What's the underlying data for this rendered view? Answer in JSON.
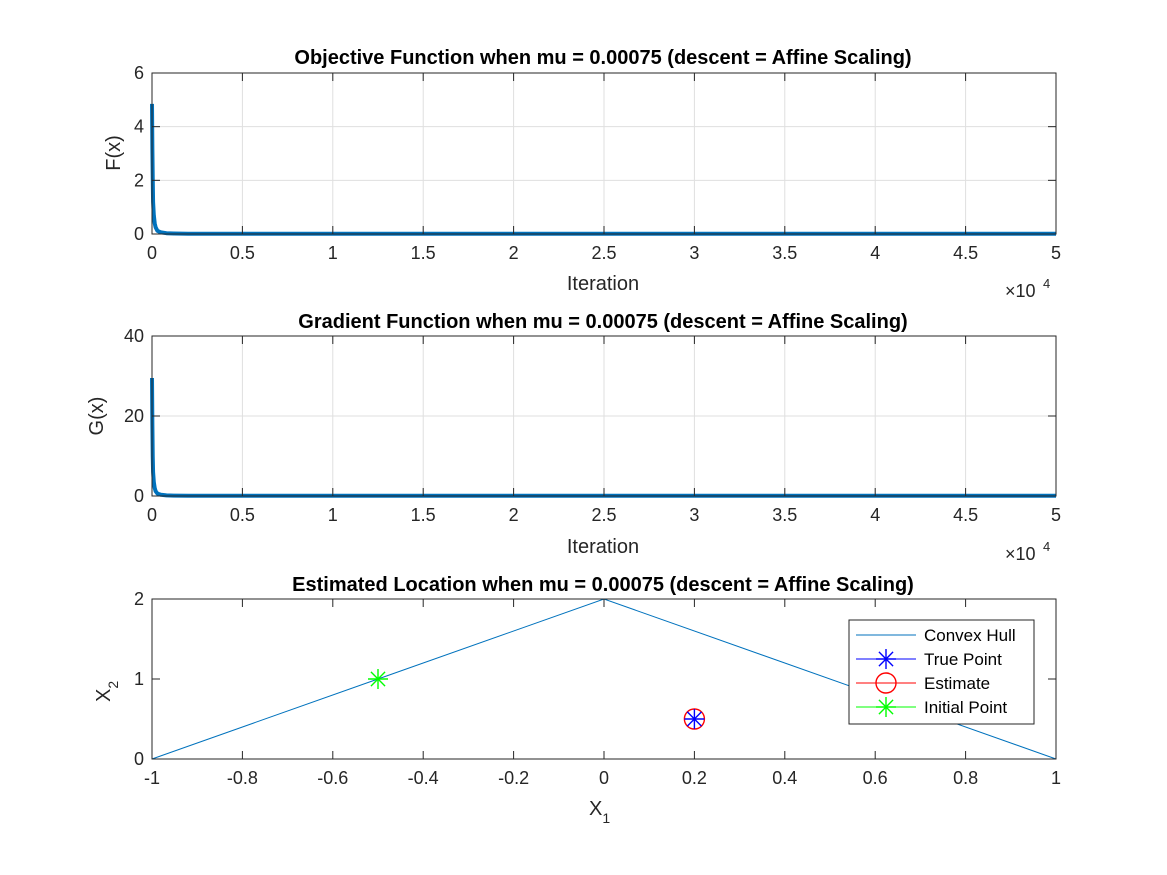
{
  "chart_data": [
    {
      "type": "line",
      "title": "Objective Function when mu = 0.00075 (descent = Affine Scaling)",
      "xlabel": "Iteration",
      "ylabel": "F(x)",
      "x_exponent_base": "×10",
      "x_exponent_power": "4",
      "xlim": [
        0,
        5
      ],
      "ylim": [
        0,
        6
      ],
      "xticks": [
        "0",
        "0.5",
        "1",
        "1.5",
        "2",
        "2.5",
        "3",
        "3.5",
        "4",
        "4.5",
        "5"
      ],
      "yticks": [
        "0",
        "2",
        "4",
        "6"
      ],
      "grid": true,
      "color": "#0072BD",
      "series": [
        {
          "x": [
            0,
            0.002,
            0.004,
            0.006,
            0.01,
            0.015,
            0.02,
            0.03,
            0.05,
            0.08,
            0.12,
            0.2,
            0.5,
            1,
            2,
            3,
            4,
            5
          ],
          "y": [
            4.85,
            3.2,
            2.1,
            1.2,
            0.7,
            0.4,
            0.25,
            0.12,
            0.06,
            0.03,
            0.02,
            0.01,
            0.01,
            0.01,
            0.01,
            0.01,
            0.01,
            0.01
          ]
        }
      ]
    },
    {
      "type": "line",
      "title": "Gradient Function when mu = 0.00075 (descent = Affine Scaling)",
      "xlabel": "Iteration",
      "ylabel": "G(x)",
      "x_exponent_base": "×10",
      "x_exponent_power": "4",
      "xlim": [
        0,
        5
      ],
      "ylim": [
        0,
        40
      ],
      "xticks": [
        "0",
        "0.5",
        "1",
        "1.5",
        "2",
        "2.5",
        "3",
        "3.5",
        "4",
        "4.5",
        "5"
      ],
      "yticks": [
        "0",
        "20",
        "40"
      ],
      "grid": true,
      "color": "#0072BD",
      "series": [
        {
          "x": [
            0,
            0.002,
            0.004,
            0.006,
            0.01,
            0.015,
            0.02,
            0.03,
            0.05,
            0.08,
            0.12,
            0.2,
            0.5,
            1,
            2,
            3,
            4,
            5
          ],
          "y": [
            29.5,
            18,
            10,
            6,
            3.5,
            2,
            1.2,
            0.6,
            0.3,
            0.15,
            0.1,
            0.05,
            0.05,
            0.05,
            0.05,
            0.05,
            0.05,
            0.05
          ]
        }
      ]
    },
    {
      "type": "scatter",
      "title": "Estimated Location when mu = 0.00075 (descent = Affine Scaling)",
      "xlabel_main": "X",
      "xlabel_sub": "1",
      "ylabel_main": "X",
      "ylabel_sub": "2",
      "xlim": [
        -1,
        1
      ],
      "ylim": [
        0,
        2
      ],
      "xticks": [
        "-1",
        "-0.8",
        "-0.6",
        "-0.4",
        "-0.2",
        "0",
        "0.2",
        "0.4",
        "0.6",
        "0.8",
        "1"
      ],
      "yticks": [
        "0",
        "1",
        "2"
      ],
      "grid": false,
      "legend_position": "top-right",
      "convex_hull": {
        "name": "Convex Hull",
        "color": "#0072BD",
        "x": [
          -1,
          0,
          1,
          -1
        ],
        "y": [
          0,
          2,
          0,
          0
        ]
      },
      "true_point": {
        "name": "True Point",
        "color": "#0000FF",
        "marker": "asterisk",
        "x": 0.2,
        "y": 0.5
      },
      "estimate": {
        "name": "Estimate",
        "color": "#FF0000",
        "marker": "circle",
        "x": 0.2,
        "y": 0.5
      },
      "initial_point": {
        "name": "Initial Point",
        "color": "#00FF00",
        "marker": "asterisk",
        "x": -0.5,
        "y": 1
      }
    }
  ]
}
